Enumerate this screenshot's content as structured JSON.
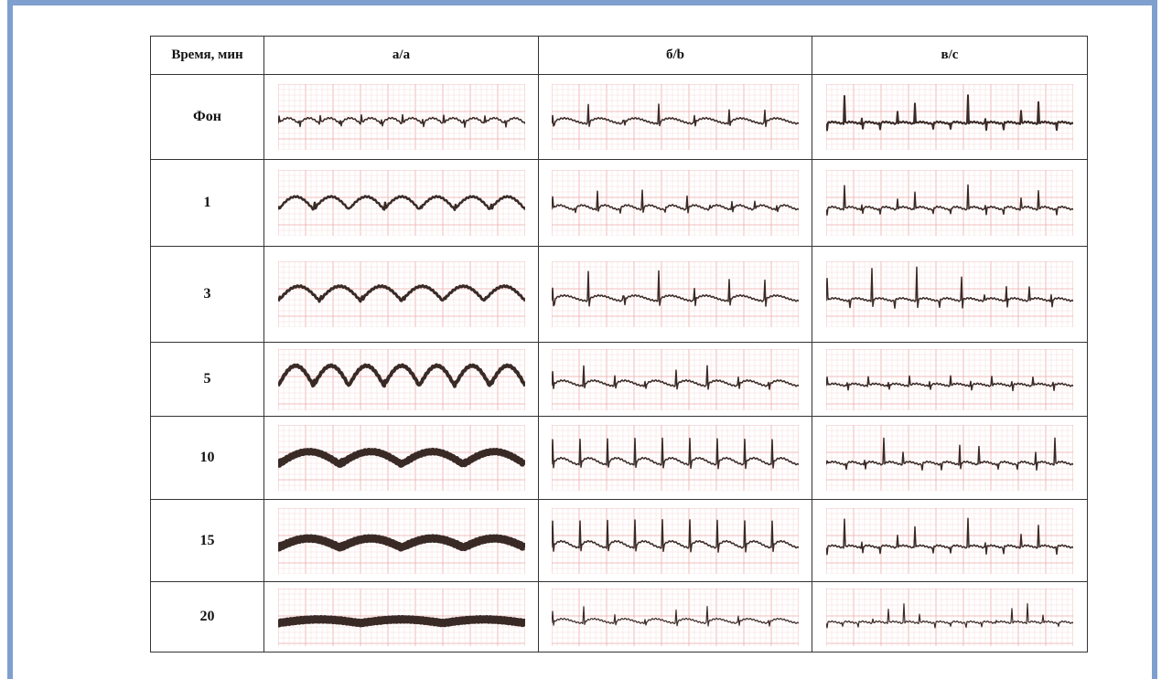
{
  "table": {
    "header": [
      "Время, мин",
      "а/a",
      "б/b",
      "в/c"
    ],
    "rows": [
      "Фон",
      "1",
      "3",
      "5",
      "10",
      "15",
      "20"
    ]
  }
}
